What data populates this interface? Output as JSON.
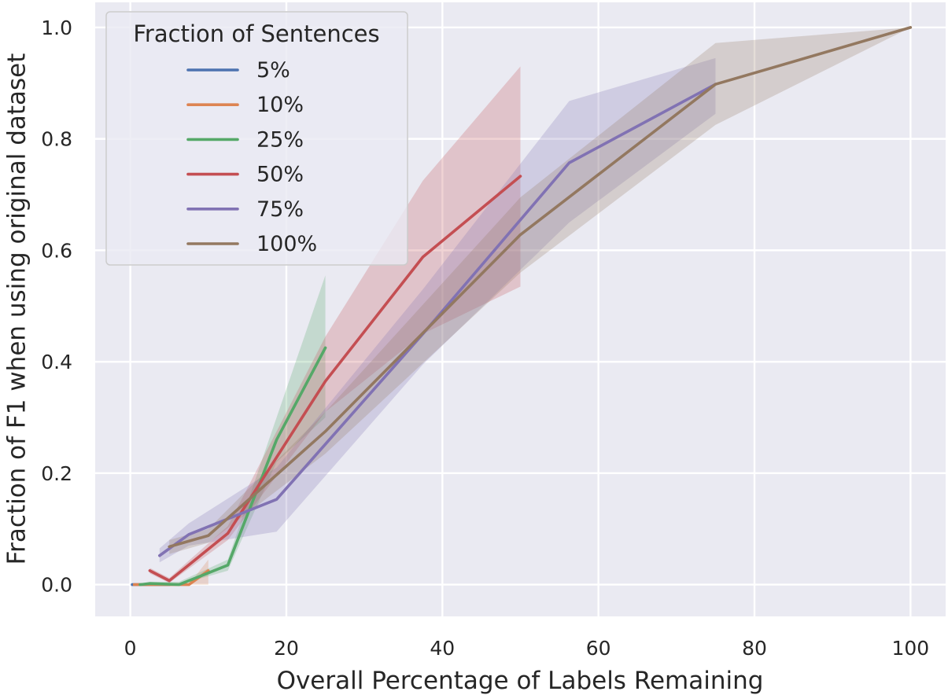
{
  "chart_data": {
    "type": "line",
    "title": "",
    "xlabel": "Overall Percentage of Labels Remaining",
    "ylabel": "Fraction of F1 when using original dataset",
    "xlim": [
      -4.5,
      104.5
    ],
    "ylim": [
      -0.057,
      1.045
    ],
    "xticks": [
      0,
      20,
      40,
      60,
      80,
      100
    ],
    "yticks": [
      0.0,
      0.2,
      0.4,
      0.6,
      0.8,
      1.0
    ],
    "xtick_labels": [
      "0",
      "20",
      "40",
      "60",
      "80",
      "100"
    ],
    "ytick_labels": [
      "0.0",
      "0.2",
      "0.4",
      "0.6",
      "0.8",
      "1.0"
    ],
    "grid": true,
    "legend": {
      "title": "Fraction of Sentences",
      "placement": "top-left"
    },
    "series": [
      {
        "name": "5%",
        "color": "#4c72b0",
        "x": [
          0.25,
          0.5,
          1.25,
          2.5,
          3.75,
          5.0
        ],
        "y": [
          0.0,
          0.0,
          0.0,
          0.0,
          0.0,
          0.0
        ],
        "lower": [
          0.0,
          0.0,
          0.0,
          0.0,
          0.0,
          0.0
        ],
        "upper": [
          0.0,
          0.0,
          0.0,
          0.0,
          0.0,
          0.0
        ]
      },
      {
        "name": "10%",
        "color": "#dd8452",
        "x": [
          0.5,
          1.0,
          2.5,
          5.0,
          7.5,
          10.0
        ],
        "y": [
          0.0,
          0.0,
          0.0,
          0.0,
          0.0,
          0.025
        ],
        "lower": [
          0.0,
          0.0,
          0.0,
          0.0,
          0.0,
          0.0
        ],
        "upper": [
          0.0,
          0.0,
          0.0,
          0.0,
          0.0,
          0.045
        ]
      },
      {
        "name": "25%",
        "color": "#55a868",
        "x": [
          1.25,
          2.5,
          6.25,
          12.5,
          18.75,
          25.0
        ],
        "y": [
          0.0,
          0.002,
          0.0,
          0.035,
          0.26,
          0.425
        ],
        "lower": [
          0.0,
          0.0,
          0.0,
          0.025,
          0.22,
          0.3
        ],
        "upper": [
          0.0,
          0.005,
          0.005,
          0.045,
          0.3,
          0.555
        ]
      },
      {
        "name": "50%",
        "color": "#c44e52",
        "x": [
          2.5,
          5.0,
          12.5,
          25.0,
          37.5,
          50.0
        ],
        "y": [
          0.025,
          0.007,
          0.092,
          0.365,
          0.588,
          0.733
        ],
        "lower": [
          0.02,
          0.003,
          0.08,
          0.31,
          0.45,
          0.535
        ],
        "upper": [
          0.03,
          0.012,
          0.105,
          0.445,
          0.725,
          0.93
        ]
      },
      {
        "name": "75%",
        "color": "#8172b3",
        "x": [
          3.75,
          7.5,
          18.75,
          37.5,
          56.25,
          75.0
        ],
        "y": [
          0.052,
          0.09,
          0.153,
          0.45,
          0.757,
          0.898
        ],
        "lower": [
          0.04,
          0.07,
          0.095,
          0.395,
          0.65,
          0.845
        ],
        "upper": [
          0.065,
          0.11,
          0.21,
          0.53,
          0.868,
          0.945
        ]
      },
      {
        "name": "100%",
        "color": "#937860",
        "x": [
          5.0,
          10.0,
          25.0,
          50.0,
          75.0,
          100.0
        ],
        "y": [
          0.068,
          0.088,
          0.275,
          0.628,
          0.898,
          1.0
        ],
        "lower": [
          0.055,
          0.075,
          0.235,
          0.56,
          0.825,
          1.0
        ],
        "upper": [
          0.08,
          0.1,
          0.31,
          0.695,
          0.972,
          1.0
        ]
      }
    ]
  }
}
